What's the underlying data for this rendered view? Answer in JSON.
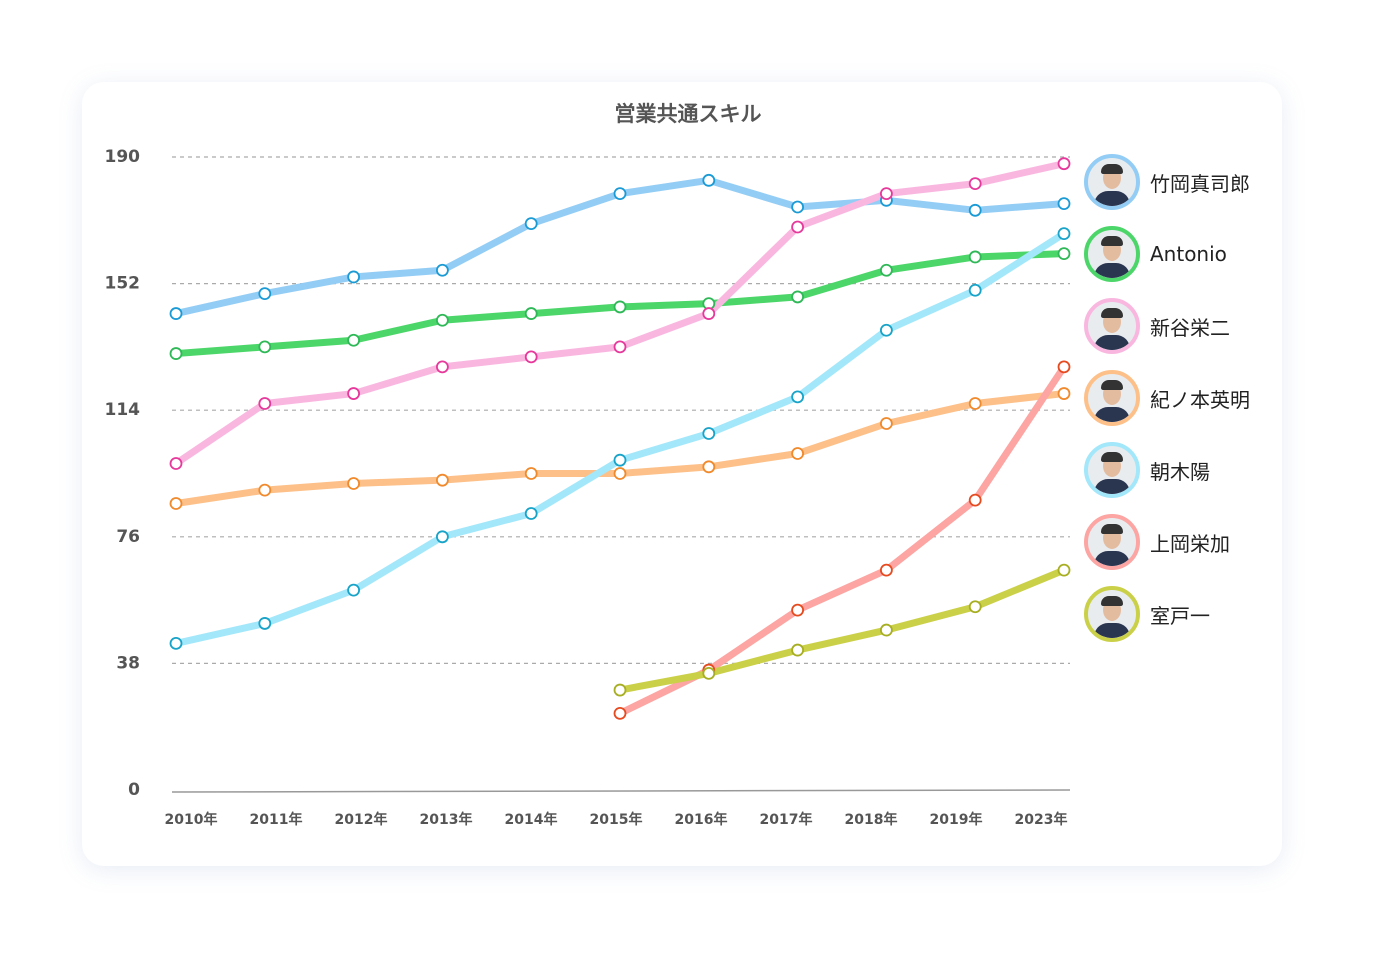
{
  "chart_data": {
    "type": "line",
    "title": "営業共通スキル",
    "categories": [
      "2010年",
      "2011年",
      "2012年",
      "2013年",
      "2014年",
      "2015年",
      "2016年",
      "2017年",
      "2018年",
      "2019年",
      "2023年"
    ],
    "yticks": [
      0,
      38,
      76,
      114,
      152,
      190
    ],
    "ylim": [
      0,
      190
    ],
    "grid": true,
    "legend_position": "right",
    "series": [
      {
        "name": "竹岡真司郎",
        "line": "#93cdf5",
        "marker": "#1b9bd6",
        "values": [
          143,
          149,
          154,
          156,
          170,
          179,
          183,
          175,
          177,
          174,
          176
        ]
      },
      {
        "name": "Antonio",
        "line": "#4cd66a",
        "marker": "#2fb857",
        "values": [
          131,
          133,
          135,
          141,
          143,
          145,
          146,
          148,
          156,
          160,
          161
        ]
      },
      {
        "name": "新谷栄二",
        "line": "#f9b7e0",
        "marker": "#e6399b",
        "values": [
          98,
          116,
          119,
          127,
          130,
          133,
          143,
          169,
          179,
          182,
          188
        ]
      },
      {
        "name": "紀ノ本英明",
        "line": "#fdc089",
        "marker": "#f08a2c",
        "values": [
          86,
          90,
          92,
          93,
          95,
          95,
          97,
          101,
          110,
          116,
          119
        ]
      },
      {
        "name": "朝木陽",
        "line": "#a3e7fb",
        "marker": "#18a3c8",
        "values": [
          44,
          50,
          60,
          76,
          83,
          99,
          107,
          118,
          138,
          150,
          167
        ]
      },
      {
        "name": "上岡栄加",
        "line": "#fca5a2",
        "marker": "#e64a1f",
        "values": [
          null,
          null,
          null,
          null,
          null,
          23,
          36,
          54,
          66,
          87,
          127
        ]
      },
      {
        "name": "室戸一",
        "line": "#cbd049",
        "marker": "#a7ae22",
        "values": [
          null,
          null,
          null,
          null,
          null,
          30,
          35,
          42,
          48,
          55,
          66
        ]
      }
    ]
  }
}
